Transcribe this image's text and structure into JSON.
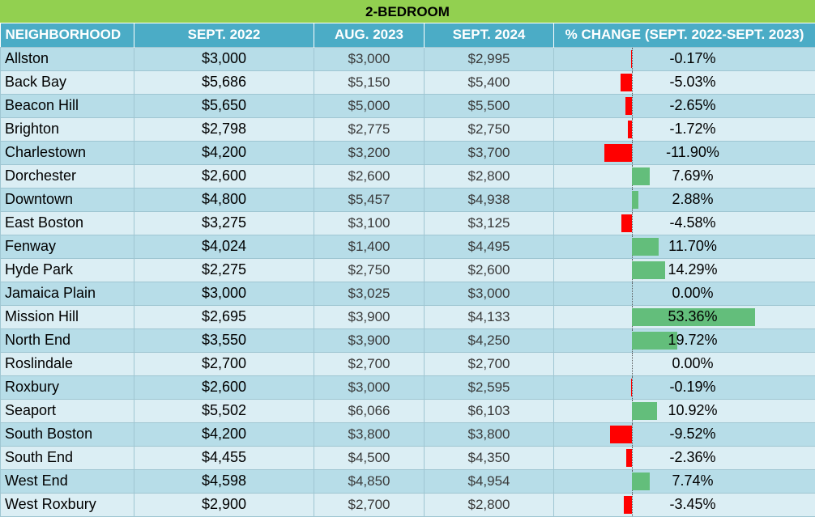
{
  "title": "2-BEDROOM",
  "headers": [
    "NEIGHBORHOOD",
    "SEPT. 2022",
    "AUG. 2023",
    "SEPT. 2024",
    "% CHANGE (SEPT. 2022-SEPT. 2023)"
  ],
  "colors": {
    "title_bg": "#92d050",
    "header_bg": "#4bacc6",
    "neg_bar": "#ff0000",
    "pos_bar": "#63be7b"
  },
  "rows": [
    {
      "name": "Allston",
      "sept2022": "$3,000",
      "aug2023": "$3,000",
      "sept2024": "$2,995",
      "pct": "-0.17%",
      "pct_value": -0.17
    },
    {
      "name": "Back Bay",
      "sept2022": "$5,686",
      "aug2023": "$5,150",
      "sept2024": "$5,400",
      "pct": "-5.03%",
      "pct_value": -5.03
    },
    {
      "name": "Beacon Hill",
      "sept2022": "$5,650",
      "aug2023": "$5,000",
      "sept2024": "$5,500",
      "pct": "-2.65%",
      "pct_value": -2.65
    },
    {
      "name": "Brighton",
      "sept2022": "$2,798",
      "aug2023": "$2,775",
      "sept2024": "$2,750",
      "pct": "-1.72%",
      "pct_value": -1.72
    },
    {
      "name": "Charlestown",
      "sept2022": "$4,200",
      "aug2023": "$3,200",
      "sept2024": "$3,700",
      "pct": "-11.90%",
      "pct_value": -11.9
    },
    {
      "name": "Dorchester",
      "sept2022": "$2,600",
      "aug2023": "$2,600",
      "sept2024": "$2,800",
      "pct": "7.69%",
      "pct_value": 7.69
    },
    {
      "name": "Downtown",
      "sept2022": "$4,800",
      "aug2023": "$5,457",
      "sept2024": "$4,938",
      "pct": "2.88%",
      "pct_value": 2.88
    },
    {
      "name": "East Boston",
      "sept2022": "$3,275",
      "aug2023": "$3,100",
      "sept2024": "$3,125",
      "pct": "-4.58%",
      "pct_value": -4.58
    },
    {
      "name": "Fenway",
      "sept2022": "$4,024",
      "aug2023": "$1,400",
      "sept2024": "$4,495",
      "pct": "11.70%",
      "pct_value": 11.7
    },
    {
      "name": "Hyde Park",
      "sept2022": "$2,275",
      "aug2023": "$2,750",
      "sept2024": "$2,600",
      "pct": "14.29%",
      "pct_value": 14.29
    },
    {
      "name": "Jamaica Plain",
      "sept2022": "$3,000",
      "aug2023": "$3,025",
      "sept2024": "$3,000",
      "pct": "0.00%",
      "pct_value": 0.0
    },
    {
      "name": "Mission Hill",
      "sept2022": "$2,695",
      "aug2023": "$3,900",
      "sept2024": "$4,133",
      "pct": "53.36%",
      "pct_value": 53.36
    },
    {
      "name": "North End",
      "sept2022": "$3,550",
      "aug2023": "$3,900",
      "sept2024": "$4,250",
      "pct": "19.72%",
      "pct_value": 19.72
    },
    {
      "name": "Roslindale",
      "sept2022": "$2,700",
      "aug2023": "$2,700",
      "sept2024": "$2,700",
      "pct": "0.00%",
      "pct_value": 0.0
    },
    {
      "name": "Roxbury",
      "sept2022": "$2,600",
      "aug2023": "$3,000",
      "sept2024": "$2,595",
      "pct": "-0.19%",
      "pct_value": -0.19
    },
    {
      "name": "Seaport",
      "sept2022": "$5,502",
      "aug2023": "$6,066",
      "sept2024": "$6,103",
      "pct": "10.92%",
      "pct_value": 10.92
    },
    {
      "name": "South Boston",
      "sept2022": "$4,200",
      "aug2023": "$3,800",
      "sept2024": "$3,800",
      "pct": "-9.52%",
      "pct_value": -9.52
    },
    {
      "name": "South End",
      "sept2022": "$4,455",
      "aug2023": "$4,500",
      "sept2024": "$4,350",
      "pct": "-2.36%",
      "pct_value": -2.36
    },
    {
      "name": "West End",
      "sept2022": "$4,598",
      "aug2023": "$4,850",
      "sept2024": "$4,954",
      "pct": "7.74%",
      "pct_value": 7.74
    },
    {
      "name": "West Roxbury",
      "sept2022": "$2,900",
      "aug2023": "$2,700",
      "sept2024": "$2,800",
      "pct": "-3.45%",
      "pct_value": -3.45
    }
  ]
}
